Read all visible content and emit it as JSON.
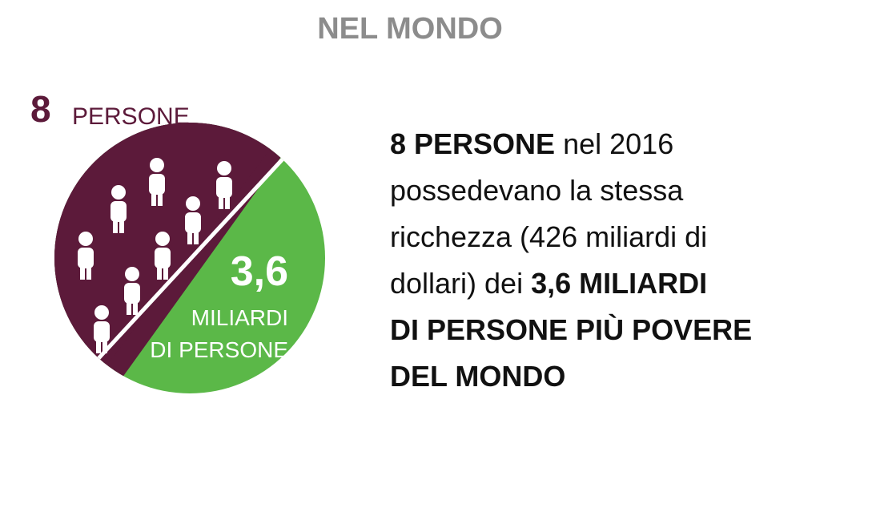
{
  "header": {
    "title": "NEL MONDO"
  },
  "graphic": {
    "top_number": "8",
    "top_label": "PERSONE",
    "green_number": "3,6",
    "green_label_lines": [
      "MILIARDI",
      "DI PERSONE"
    ]
  },
  "text": {
    "lines": [
      [
        {
          "text": "8 PERSONE",
          "bold": true
        },
        {
          "text": " nel 2016",
          "bold": false
        }
      ],
      [
        {
          "text": "possedevano la stessa",
          "bold": false
        }
      ],
      [
        {
          "text": "ricchezza (426 miliardi di",
          "bold": false
        }
      ],
      [
        {
          "text": "dollari) dei ",
          "bold": false
        },
        {
          "text": "3,6 MILIARDI",
          "bold": true
        }
      ],
      [
        {
          "text": "DI PERSONE PIÙ POVERE",
          "bold": true
        }
      ],
      [
        {
          "text": "DEL MONDO",
          "bold": true
        }
      ]
    ]
  }
}
